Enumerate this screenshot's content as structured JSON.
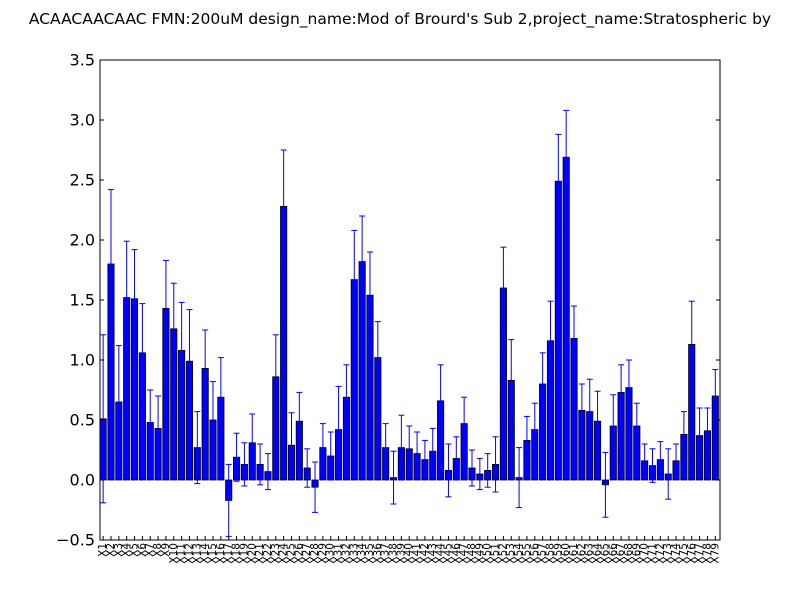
{
  "chart_data": {
    "type": "bar",
    "title": "ACAACAACAAC  FMN:200uM  design_name:Mod of Brourd's Sub 2,project_name:Stratospheric by",
    "xlabel": "",
    "ylabel": "",
    "ylim": [
      -0.5,
      3.5
    ],
    "yticks": [
      "−0.5",
      "0.0",
      "0.5",
      "1.0",
      "1.5",
      "2.0",
      "2.5",
      "3.0",
      "3.5"
    ],
    "grid": false,
    "bar_color": "#0000ff",
    "error_color": "#0000ff",
    "categories": [
      "X1",
      "X2",
      "X3",
      "X4",
      "X5",
      "X6",
      "X7",
      "X8",
      "X9",
      "X10",
      "X11",
      "X12",
      "X13",
      "X14",
      "X15",
      "X16",
      "X17",
      "X18",
      "X19",
      "X20",
      "X21",
      "X22",
      "X23",
      "X24",
      "X25",
      "X26",
      "X27",
      "X28",
      "X29",
      "X30",
      "X31",
      "X32",
      "X33",
      "X34",
      "X35",
      "X36",
      "X37",
      "X38",
      "X39",
      "X40",
      "X41",
      "X42",
      "X43",
      "X44",
      "X45",
      "X46",
      "X47",
      "X48",
      "X49",
      "X50",
      "X51",
      "X52",
      "X53",
      "X54",
      "X55",
      "X56",
      "X57",
      "X58",
      "X59",
      "X60",
      "X61",
      "X62",
      "X63",
      "X64",
      "X65",
      "X66",
      "X67",
      "X68",
      "X69",
      "X70",
      "X71",
      "X72",
      "X73",
      "X74",
      "X75",
      "X76",
      "X77",
      "X78",
      "X79"
    ],
    "values": [
      0.51,
      1.8,
      0.65,
      1.52,
      1.51,
      1.06,
      0.48,
      0.43,
      1.43,
      1.26,
      1.08,
      0.99,
      0.27,
      0.93,
      0.5,
      0.69,
      -0.17,
      0.19,
      0.13,
      0.31,
      0.13,
      0.07,
      0.86,
      2.28,
      0.29,
      0.49,
      0.1,
      -0.06,
      0.27,
      0.2,
      0.42,
      0.69,
      1.67,
      1.82,
      1.54,
      1.02,
      0.27,
      0.02,
      0.27,
      0.26,
      0.22,
      0.17,
      0.24,
      0.66,
      0.08,
      0.18,
      0.47,
      0.1,
      0.05,
      0.08,
      0.13,
      1.6,
      0.83,
      0.02,
      0.33,
      0.42,
      0.8,
      1.16,
      2.49,
      2.69,
      1.18,
      0.58,
      0.57,
      0.49,
      -0.04,
      0.45,
      0.73,
      0.77,
      0.45,
      0.16,
      0.12,
      0.17,
      0.05,
      0.16,
      0.38,
      1.13,
      0.37,
      0.41,
      0.7
    ],
    "errors": [
      0.7,
      0.62,
      0.47,
      0.47,
      0.41,
      0.41,
      0.27,
      0.27,
      0.4,
      0.38,
      0.4,
      0.43,
      0.3,
      0.32,
      0.32,
      0.33,
      0.3,
      0.2,
      0.18,
      0.24,
      0.17,
      0.15,
      0.35,
      0.47,
      0.27,
      0.24,
      0.16,
      0.21,
      0.2,
      0.2,
      0.36,
      0.27,
      0.41,
      0.38,
      0.36,
      0.3,
      0.2,
      0.22,
      0.27,
      0.19,
      0.18,
      0.16,
      0.19,
      0.3,
      0.22,
      0.18,
      0.22,
      0.15,
      0.13,
      0.14,
      0.23,
      0.34,
      0.34,
      0.25,
      0.2,
      0.22,
      0.26,
      0.33,
      0.39,
      0.39,
      0.27,
      0.22,
      0.27,
      0.25,
      0.27,
      0.26,
      0.23,
      0.23,
      0.19,
      0.14,
      0.14,
      0.15,
      0.21,
      0.14,
      0.19,
      0.36,
      0.23,
      0.19,
      0.22
    ]
  }
}
